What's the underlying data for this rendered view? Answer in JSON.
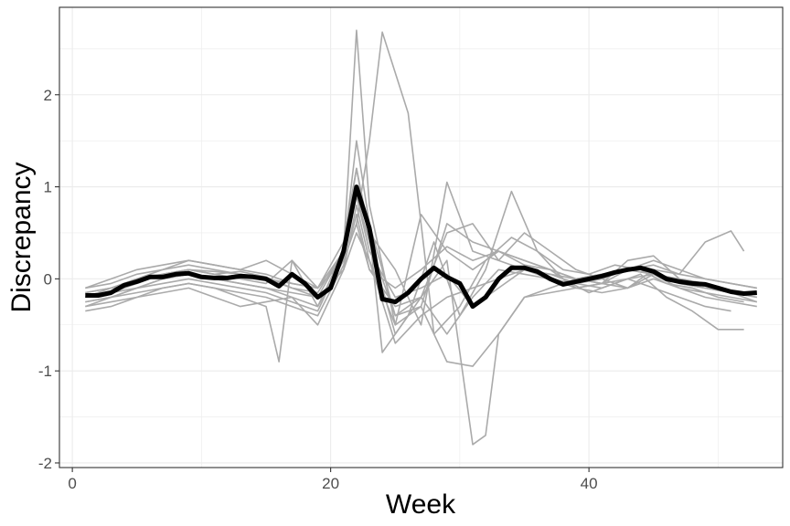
{
  "chart_data": {
    "type": "line",
    "title": "",
    "xlabel": "Week",
    "ylabel": "Discrepancy",
    "xlim": [
      -1,
      55
    ],
    "ylim": [
      -2.05,
      2.95
    ],
    "x_ticks": [
      0,
      20,
      40
    ],
    "x_tick_labels": [
      "0",
      "20",
      "40"
    ],
    "y_ticks": [
      -2,
      -1,
      0,
      1,
      2
    ],
    "y_tick_labels": [
      "-2",
      "-1",
      "0",
      "1",
      "2"
    ],
    "grid": true,
    "legend": "none",
    "colors": {
      "individual": "#aaaaaa",
      "mean": "#000000",
      "grid": "#ebebeb",
      "panel_border": "#333333"
    },
    "series": [
      {
        "role": "individual",
        "x": [
          1,
          3,
          5,
          7,
          9,
          11,
          13,
          15,
          17,
          19,
          21,
          22,
          23,
          25,
          27,
          29,
          31,
          33,
          35,
          37,
          39,
          41,
          43,
          45,
          47,
          49,
          51,
          53
        ],
        "y": [
          -0.2,
          -0.15,
          -0.05,
          0.05,
          0.1,
          0.05,
          0.08,
          0.02,
          -0.1,
          -0.15,
          0.3,
          2.7,
          0.8,
          -0.5,
          -0.3,
          0.6,
          0.4,
          0.3,
          0.15,
          0.1,
          -0.1,
          -0.05,
          0.1,
          0.05,
          -0.05,
          -0.1,
          -0.15,
          -0.2
        ]
      },
      {
        "role": "individual",
        "x": [
          1,
          3,
          5,
          7,
          9,
          11,
          13,
          15,
          17,
          19,
          21,
          22,
          23,
          24,
          26,
          28,
          30,
          32,
          34,
          36,
          38,
          40,
          42,
          44,
          46,
          48,
          50,
          52
        ],
        "y": [
          -0.1,
          -0.05,
          0.05,
          0.1,
          0.2,
          0.15,
          0.1,
          0.05,
          -0.05,
          -0.1,
          0.2,
          0.6,
          1.5,
          2.68,
          1.8,
          -0.6,
          -0.3,
          0.2,
          0.45,
          0.3,
          0.1,
          0.05,
          0.15,
          0.1,
          -0.05,
          -0.1,
          -0.2,
          -0.25
        ]
      },
      {
        "role": "individual",
        "x": [
          1,
          3,
          5,
          7,
          9,
          11,
          13,
          15,
          17,
          19,
          21,
          22,
          23,
          25,
          27,
          29,
          31,
          32,
          33,
          35,
          37,
          39,
          41,
          43,
          45,
          47,
          49,
          51
        ],
        "y": [
          -0.15,
          -0.1,
          0,
          0.1,
          0.15,
          0.1,
          0.05,
          0,
          -0.1,
          -0.2,
          0.3,
          1.5,
          0.6,
          -0.4,
          -0.2,
          0.2,
          -1.8,
          -1.7,
          -0.6,
          -0.2,
          -0.1,
          0,
          0.05,
          0.1,
          0.05,
          -0.05,
          -0.1,
          -0.15
        ]
      },
      {
        "role": "individual",
        "x": [
          1,
          3,
          5,
          7,
          9,
          11,
          13,
          15,
          16,
          17,
          19,
          21,
          22,
          23,
          25,
          27,
          29,
          31,
          33,
          35,
          37,
          39,
          41,
          43,
          45,
          47,
          49,
          51
        ],
        "y": [
          -0.35,
          -0.3,
          -0.2,
          -0.1,
          -0.05,
          -0.1,
          -0.2,
          -0.3,
          -0.9,
          0.2,
          -0.1,
          0.4,
          1.2,
          0.4,
          -0.4,
          -0.3,
          -0.9,
          -0.95,
          -0.6,
          -0.2,
          -0.15,
          -0.1,
          -0.05,
          0,
          -0.1,
          -0.2,
          -0.3,
          -0.35
        ]
      },
      {
        "role": "individual",
        "x": [
          1,
          3,
          5,
          7,
          9,
          11,
          13,
          15,
          17,
          19,
          21,
          22,
          23,
          25,
          27,
          29,
          31,
          33,
          35,
          37,
          39,
          41,
          43,
          45,
          47,
          49,
          51,
          53
        ],
        "y": [
          -0.25,
          -0.2,
          -0.1,
          0,
          0.05,
          0,
          -0.05,
          -0.1,
          -0.2,
          -0.3,
          0.2,
          0.9,
          0.3,
          -0.2,
          -0.1,
          0.05,
          -0.3,
          -0.1,
          0.1,
          0.05,
          0,
          -0.05,
          0.2,
          0.25,
          0,
          -0.05,
          -0.15,
          -0.25
        ]
      },
      {
        "role": "individual",
        "x": [
          1,
          3,
          5,
          7,
          9,
          11,
          13,
          15,
          17,
          19,
          21,
          22,
          23,
          25,
          27,
          29,
          31,
          33,
          35,
          37,
          39,
          41,
          43,
          45,
          47,
          49,
          51,
          52
        ],
        "y": [
          -0.2,
          -0.15,
          -0.1,
          0,
          0.05,
          0,
          -0.05,
          -0.1,
          -0.15,
          -0.2,
          0.1,
          0.8,
          0.2,
          -0.5,
          0.7,
          0.3,
          0.1,
          0.3,
          0.2,
          0.1,
          0,
          -0.05,
          -0.1,
          0.1,
          0.05,
          0.4,
          0.52,
          0.3
        ]
      },
      {
        "role": "individual",
        "x": [
          1,
          3,
          5,
          7,
          9,
          11,
          13,
          15,
          17,
          19,
          21,
          22,
          23,
          24,
          26,
          28,
          30,
          32,
          34,
          36,
          38,
          40,
          42,
          44,
          46,
          48,
          50,
          52
        ],
        "y": [
          -0.3,
          -0.2,
          -0.1,
          -0.05,
          0,
          -0.05,
          -0.1,
          -0.15,
          -0.25,
          -0.35,
          0.25,
          1.0,
          0.5,
          -0.8,
          -0.4,
          0.4,
          -0.4,
          0.1,
          0.95,
          0.3,
          0,
          -0.15,
          -0.05,
          0.05,
          -0.2,
          -0.35,
          -0.55,
          -0.55
        ]
      },
      {
        "role": "individual",
        "x": [
          1,
          3,
          5,
          7,
          9,
          11,
          13,
          15,
          17,
          19,
          21,
          22,
          23,
          25,
          27,
          29,
          31,
          33,
          35,
          37,
          39,
          41,
          43,
          45,
          47,
          49,
          51,
          53
        ],
        "y": [
          -0.1,
          0,
          0.1,
          0.15,
          0.2,
          0.15,
          0.1,
          0.2,
          0.05,
          -0.1,
          0.3,
          1.2,
          0.5,
          0.1,
          -0.5,
          1.05,
          0.3,
          0.2,
          0.1,
          0,
          -0.05,
          0,
          0.1,
          0.2,
          0.1,
          0,
          -0.05,
          -0.1
        ]
      },
      {
        "role": "individual",
        "x": [
          1,
          3,
          5,
          7,
          9,
          11,
          13,
          15,
          17,
          19,
          21,
          22,
          23,
          25,
          27,
          29,
          31,
          33,
          35,
          37,
          39,
          41,
          43,
          45,
          47,
          49,
          51,
          53
        ],
        "y": [
          -0.25,
          -0.2,
          -0.15,
          -0.1,
          -0.05,
          -0.1,
          -0.15,
          -0.2,
          -0.3,
          -0.4,
          0.15,
          0.7,
          0.1,
          -0.3,
          -0.2,
          -0.6,
          -0.2,
          0.1,
          0.05,
          0,
          -0.1,
          -0.15,
          -0.1,
          0,
          -0.1,
          -0.15,
          -0.2,
          -0.25
        ]
      },
      {
        "role": "individual",
        "x": [
          1,
          3,
          5,
          7,
          9,
          11,
          13,
          15,
          17,
          19,
          21,
          22,
          23,
          25,
          27,
          29,
          31,
          33,
          35,
          37,
          39,
          41,
          43,
          45,
          47,
          49,
          51,
          53
        ],
        "y": [
          -0.15,
          -0.1,
          -0.05,
          0.05,
          0.1,
          0.08,
          0.05,
          0,
          -0.05,
          -0.1,
          0.2,
          0.6,
          0.1,
          -0.1,
          0.1,
          0.35,
          0.2,
          0.3,
          0.2,
          0.1,
          0,
          0.05,
          0.1,
          0.15,
          0.05,
          0,
          -0.05,
          -0.1
        ]
      },
      {
        "role": "individual",
        "x": [
          1,
          3,
          5,
          7,
          9,
          11,
          13,
          15,
          17,
          19,
          21,
          22,
          23,
          25,
          27,
          29,
          31,
          33,
          35,
          37,
          39,
          41,
          43,
          45,
          47,
          49,
          51,
          53
        ],
        "y": [
          -0.2,
          -0.1,
          0,
          0.05,
          0.1,
          0.05,
          0,
          -0.05,
          0.2,
          -0.3,
          0.3,
          0.9,
          0.4,
          -0.6,
          -0.2,
          0.5,
          0.6,
          0.2,
          0.5,
          0.3,
          0.1,
          0,
          -0.1,
          0.05,
          0,
          -0.05,
          -0.15,
          -0.2
        ]
      },
      {
        "role": "individual",
        "x": [
          1,
          3,
          5,
          7,
          9,
          11,
          13,
          15,
          17,
          19,
          21,
          22,
          23,
          25,
          27,
          29,
          31,
          33,
          35,
          37,
          39,
          41,
          43,
          45,
          47,
          49,
          51,
          53
        ],
        "y": [
          -0.3,
          -0.25,
          -0.2,
          -0.15,
          -0.1,
          -0.2,
          -0.3,
          -0.25,
          -0.2,
          -0.5,
          0.1,
          0.5,
          0.2,
          -0.7,
          -0.4,
          -0.2,
          -0.1,
          0,
          0.1,
          0.05,
          -0.05,
          -0.1,
          0,
          0.05,
          -0.1,
          -0.2,
          -0.25,
          -0.3
        ]
      },
      {
        "role": "mean",
        "x": [
          1,
          2,
          3,
          4,
          5,
          6,
          7,
          8,
          9,
          10,
          11,
          12,
          13,
          14,
          15,
          16,
          17,
          18,
          19,
          20,
          21,
          22,
          23,
          24,
          25,
          26,
          27,
          28,
          29,
          30,
          31,
          32,
          33,
          34,
          35,
          36,
          37,
          38,
          39,
          40,
          41,
          42,
          43,
          44,
          45,
          46,
          47,
          48,
          49,
          50,
          51,
          52,
          53
        ],
        "y": [
          -0.18,
          -0.18,
          -0.15,
          -0.07,
          -0.03,
          0.02,
          0.02,
          0.05,
          0.06,
          0.02,
          0.01,
          0.01,
          0.03,
          0.02,
          0,
          -0.08,
          0.05,
          -0.05,
          -0.2,
          -0.1,
          0.3,
          1.0,
          0.55,
          -0.22,
          -0.25,
          -0.15,
          0,
          0.12,
          0.02,
          -0.05,
          -0.3,
          -0.2,
          0,
          0.12,
          0.12,
          0.08,
          0,
          -0.06,
          -0.03,
          0,
          0.03,
          0.07,
          0.1,
          0.12,
          0.08,
          0,
          -0.03,
          -0.05,
          -0.06,
          -0.1,
          -0.14,
          -0.16,
          -0.15
        ]
      }
    ]
  }
}
